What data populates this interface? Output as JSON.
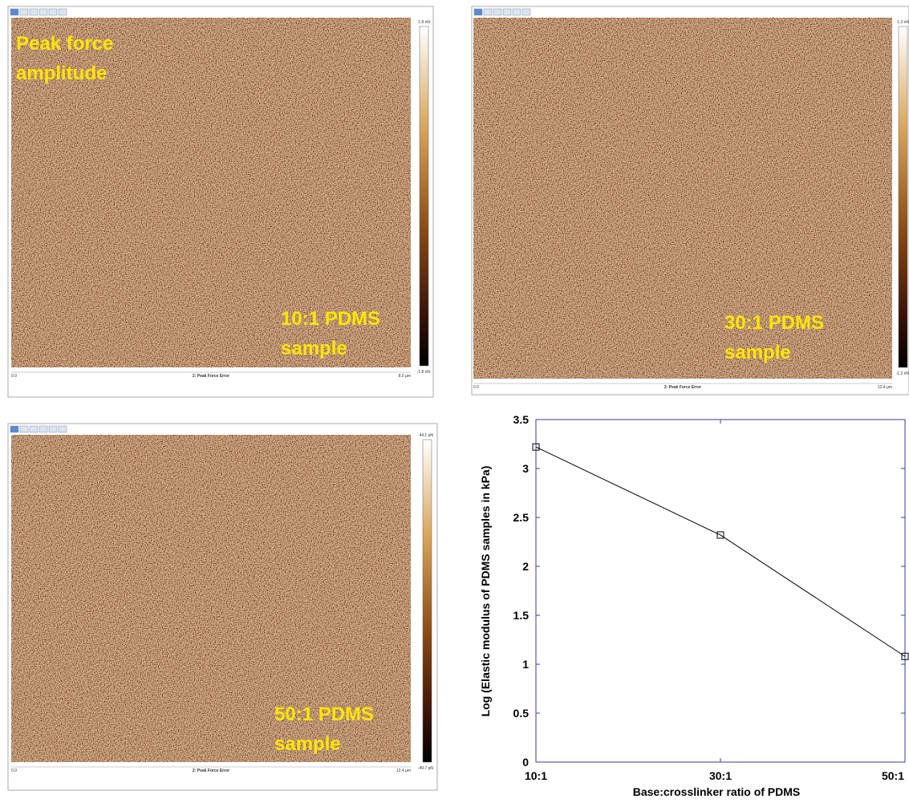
{
  "panels": [
    {
      "overlay": [
        "Peak force",
        "amplitude"
      ],
      "sample": [
        "10:1 PDMS",
        "sample"
      ],
      "scale_max": "1.8 nN",
      "scale_min": "-1.8 nN",
      "axis_start": "0.0",
      "channel": "2: Peak Force Error",
      "axis_end": "8.0 µm"
    },
    {
      "sample": [
        "30:1 PDMS",
        "sample"
      ],
      "scale_max": "1.3 nN",
      "scale_min": "-1.2 nN",
      "axis_start": "0.0",
      "channel": "2: Peak Force Error",
      "axis_end": "12.4 µm"
    },
    {
      "sample": [
        "50:1 PDMS",
        "sample"
      ],
      "scale_max": "44.1 pN",
      "scale_min": "-49.7 pN",
      "axis_start": "0.0",
      "channel": "2: Peak Force Error",
      "axis_end": "12.4 µm"
    }
  ],
  "chart_data": {
    "type": "line",
    "y_label": "Log (Elastic modulus of PDMS samples in kPa)",
    "x_label": "Base:crosslinker ratio of PDMS",
    "categories": [
      "10:1",
      "30:1",
      "50:1"
    ],
    "values": [
      3.22,
      2.32,
      1.08
    ],
    "color": "#000000",
    "marker": "square",
    "ylim": [
      0,
      3.5
    ],
    "yticks": [
      0,
      0.5,
      1,
      1.5,
      2,
      2.5,
      3,
      3.5
    ],
    "grid": false
  }
}
